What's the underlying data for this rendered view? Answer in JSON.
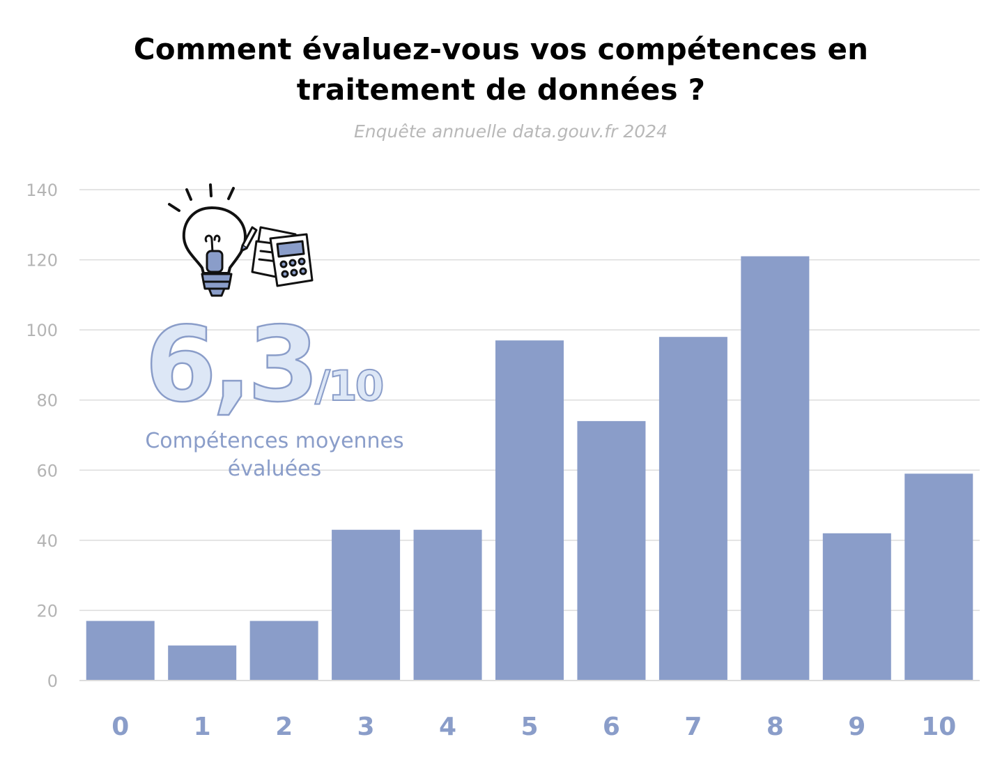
{
  "title_line1": "Comment évaluez-vous vos compétences en",
  "title_line2": "traitement de données ?",
  "subtitle": "Enquête annuelle data.gouv.fr 2024",
  "highlight": {
    "big_value": "6,3",
    "suffix": "/10",
    "label_line1": "Compétences moyennes",
    "label_line2": "évaluées"
  },
  "icons": [
    "lightbulb-icon",
    "calculator-icon"
  ],
  "colors": {
    "bar": "#8a9dc9",
    "grid": "#dcdcdc",
    "axis_text": "#b4b4b4",
    "title": "#000000",
    "highlight_fill": "#dde7f6",
    "highlight_stroke": "#8a9dc9"
  },
  "chart_data": {
    "type": "bar",
    "categories": [
      "0",
      "1",
      "2",
      "3",
      "4",
      "5",
      "6",
      "7",
      "8",
      "9",
      "10"
    ],
    "values": [
      17,
      10,
      17,
      43,
      43,
      97,
      74,
      98,
      121,
      42,
      59
    ],
    "yticks": [
      "0",
      "20",
      "40",
      "60",
      "80",
      "100",
      "120",
      "140"
    ],
    "ylim": [
      0,
      140
    ],
    "grid": true,
    "legend": "none"
  }
}
